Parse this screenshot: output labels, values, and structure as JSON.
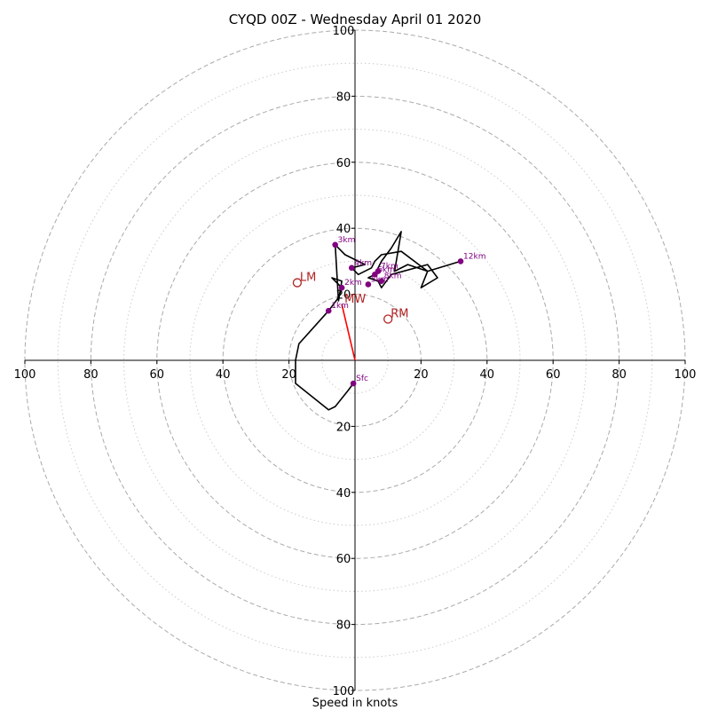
{
  "chart_data": {
    "type": "hodograph",
    "title": "CYQD 00Z - Wednesday April 01 2020",
    "xlabel": "Speed in knots",
    "units": "knots",
    "range": [
      -100,
      100
    ],
    "ring_major": [
      20,
      40,
      60,
      80,
      100
    ],
    "ring_minor": [
      10,
      30,
      50,
      70,
      90
    ],
    "x_tick_labels": [
      "100",
      "80",
      "60",
      "40",
      "20",
      "20",
      "40",
      "60",
      "80",
      "100"
    ],
    "x_tick_values": [
      -100,
      -80,
      -60,
      -40,
      -20,
      20,
      40,
      60,
      80,
      100
    ],
    "y_tick_labels": [
      "100",
      "80",
      "60",
      "40",
      "20",
      "20",
      "40",
      "60",
      "80",
      "100"
    ],
    "y_tick_values": [
      100,
      80,
      60,
      40,
      20,
      -20,
      -40,
      -60,
      -80,
      -100
    ],
    "profile": [
      [
        -0.5,
        -7
      ],
      [
        -2,
        -9
      ],
      [
        -6,
        -14
      ],
      [
        -8,
        -15
      ],
      [
        -18,
        -7
      ],
      [
        -18,
        0
      ],
      [
        -17,
        5
      ],
      [
        -8,
        15
      ],
      [
        -5,
        19
      ],
      [
        -4,
        22
      ],
      [
        -7,
        25
      ],
      [
        -4,
        24
      ],
      [
        -5,
        18
      ],
      [
        -6,
        35
      ],
      [
        -3,
        32
      ],
      [
        3,
        29
      ],
      [
        -1,
        28
      ],
      [
        1,
        26
      ],
      [
        5,
        28
      ],
      [
        6,
        30
      ],
      [
        8,
        32
      ],
      [
        14,
        33
      ],
      [
        22,
        27
      ],
      [
        16,
        29
      ],
      [
        12,
        27
      ],
      [
        13,
        33
      ],
      [
        14,
        39
      ],
      [
        11,
        34
      ],
      [
        8,
        30
      ],
      [
        6,
        26
      ],
      [
        4,
        25
      ],
      [
        7,
        24
      ],
      [
        8,
        22
      ],
      [
        11,
        26
      ],
      [
        22,
        29
      ],
      [
        25,
        25
      ],
      [
        20,
        22
      ],
      [
        22,
        27
      ],
      [
        32,
        30
      ]
    ],
    "height_markers": [
      {
        "label": "Sfc",
        "u": -0.5,
        "v": -7
      },
      {
        "label": "1km",
        "u": -8,
        "v": 15
      },
      {
        "label": "2km",
        "u": -4,
        "v": 22
      },
      {
        "label": "3km",
        "u": -6,
        "v": 35
      },
      {
        "label": "4km",
        "u": -1,
        "v": 28
      },
      {
        "label": "5km",
        "u": 4,
        "v": 23
      },
      {
        "label": "6km",
        "u": 6,
        "v": 26
      },
      {
        "label": "7km",
        "u": 7,
        "v": 27
      },
      {
        "label": "8km",
        "u": 8,
        "v": 24
      },
      {
        "label": "12km",
        "u": 32,
        "v": 30
      }
    ],
    "storm_motion": [
      {
        "label": "LM",
        "u": -17.5,
        "v": 23.5
      },
      {
        "label": "RM",
        "u": 10,
        "v": 12.5
      },
      {
        "label": "MW",
        "u": -4,
        "v": 17
      }
    ],
    "storm_motion_vector": {
      "from": [
        0,
        0
      ],
      "to": [
        -4,
        17
      ]
    },
    "colors": {
      "profile": "#000000",
      "height_marker": "#800080",
      "storm_marker": "#b22222",
      "storm_vector": "#ff0000",
      "ring": "#aaaaaa"
    }
  }
}
